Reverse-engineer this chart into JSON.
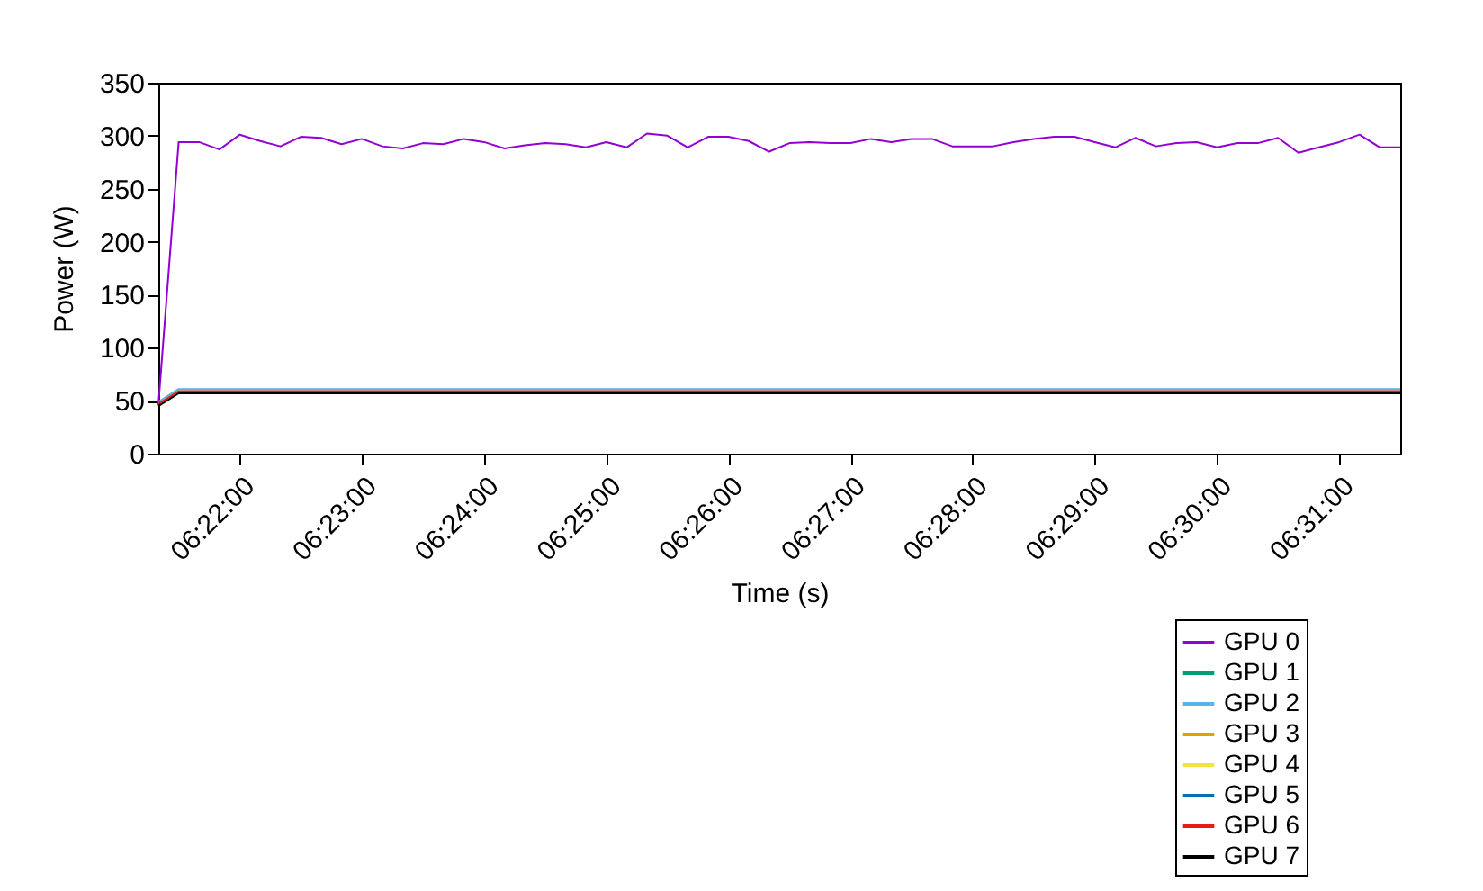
{
  "chart_data": {
    "type": "line",
    "xlabel": "Time (s)",
    "ylabel": "Power (W)",
    "legend": "bottom right",
    "grid": false,
    "xlim": [
      6.35556,
      6.525
    ],
    "ylim": [
      0,
      350
    ],
    "xticks": [
      {
        "value": 6.36667,
        "label": "06:22:00"
      },
      {
        "value": 6.38333,
        "label": "06:23:00"
      },
      {
        "value": 6.4,
        "label": "06:24:00"
      },
      {
        "value": 6.41667,
        "label": "06:25:00"
      },
      {
        "value": 6.43333,
        "label": "06:26:00"
      },
      {
        "value": 6.45,
        "label": "06:27:00"
      },
      {
        "value": 6.46667,
        "label": "06:28:00"
      },
      {
        "value": 6.48333,
        "label": "06:29:00"
      },
      {
        "value": 6.5,
        "label": "06:30:00"
      },
      {
        "value": 6.51667,
        "label": "06:31:00"
      }
    ],
    "yticks": [
      0,
      50,
      100,
      150,
      200,
      250,
      300,
      350
    ],
    "x": [
      6.35556,
      6.35833,
      6.36111,
      6.36389,
      6.36667,
      6.36944,
      6.37222,
      6.375,
      6.37778,
      6.38056,
      6.38333,
      6.38611,
      6.38889,
      6.39167,
      6.39444,
      6.39722,
      6.4,
      6.40278,
      6.40556,
      6.40833,
      6.41111,
      6.41389,
      6.41667,
      6.41944,
      6.42222,
      6.425,
      6.42778,
      6.43056,
      6.43333,
      6.43611,
      6.43889,
      6.44167,
      6.44444,
      6.44722,
      6.45,
      6.45278,
      6.45556,
      6.45833,
      6.46111,
      6.46389,
      6.46667,
      6.46944,
      6.47222,
      6.475,
      6.47778,
      6.48056,
      6.48333,
      6.48611,
      6.48889,
      6.49167,
      6.49444,
      6.49722,
      6.5,
      6.50278,
      6.50556,
      6.50833,
      6.51111,
      6.51389,
      6.51667,
      6.51944,
      6.52222,
      6.525
    ],
    "series": [
      {
        "name": "GPU 0",
        "color": "#9400d3",
        "values": [
          46,
          294,
          294,
          287,
          301,
          295,
          290,
          299,
          298,
          292,
          297,
          290,
          288,
          293,
          292,
          297,
          294,
          288,
          291,
          293,
          292,
          289,
          294,
          289,
          302,
          300,
          289,
          299,
          299,
          295,
          285,
          293,
          294,
          293,
          293,
          297,
          294,
          297,
          297,
          290,
          290,
          290,
          294,
          297,
          299,
          299,
          294,
          289,
          298,
          290,
          293,
          294,
          289,
          293,
          293,
          298,
          284,
          289,
          294,
          301,
          289,
          289
        ]
      },
      {
        "name": "GPU 1",
        "color": "#009e73",
        "values": [
          null,
          null,
          null,
          null,
          null,
          null,
          null,
          null,
          null,
          null,
          null,
          null,
          null,
          null,
          null,
          null,
          null,
          null,
          null,
          null,
          null,
          null,
          null,
          null,
          null,
          null,
          null,
          null,
          null,
          null,
          null,
          null,
          null,
          null,
          null,
          null,
          null,
          null,
          null,
          null,
          null,
          null,
          null,
          null,
          null,
          null,
          null,
          null,
          null,
          null,
          null,
          null,
          null,
          null,
          null,
          null,
          null,
          null,
          null,
          null,
          null,
          null
        ]
      },
      {
        "name": "GPU 2",
        "color": "#56b4e9",
        "values": [
          49,
          61,
          61,
          61,
          61,
          61,
          61,
          61,
          61,
          61,
          61,
          61,
          61,
          61,
          61,
          61,
          61,
          61,
          61,
          61,
          61,
          61,
          61,
          61,
          61,
          61,
          61,
          61,
          61,
          61,
          61,
          61,
          61,
          61,
          61,
          61,
          61,
          61,
          61,
          61,
          61,
          61,
          61,
          61,
          61,
          61,
          61,
          61,
          61,
          61,
          61,
          61,
          61,
          61,
          61,
          61,
          61,
          61,
          61,
          61,
          61,
          61
        ]
      },
      {
        "name": "GPU 3",
        "color": "#e69f00",
        "values": [
          null,
          null,
          null,
          null,
          null,
          null,
          null,
          null,
          null,
          null,
          null,
          null,
          null,
          null,
          null,
          null,
          null,
          null,
          null,
          null,
          null,
          null,
          null,
          null,
          null,
          null,
          null,
          null,
          null,
          null,
          null,
          null,
          null,
          null,
          null,
          null,
          null,
          null,
          null,
          null,
          null,
          null,
          null,
          null,
          null,
          null,
          null,
          null,
          null,
          null,
          null,
          null,
          null,
          null,
          null,
          null,
          null,
          null,
          null,
          null,
          null,
          null
        ]
      },
      {
        "name": "GPU 4",
        "color": "#f0e442",
        "values": [
          null,
          null,
          null,
          null,
          null,
          null,
          null,
          null,
          null,
          null,
          null,
          null,
          null,
          null,
          null,
          null,
          null,
          null,
          null,
          null,
          null,
          null,
          null,
          null,
          null,
          null,
          null,
          null,
          null,
          null,
          null,
          null,
          null,
          null,
          null,
          null,
          null,
          null,
          null,
          null,
          null,
          null,
          null,
          null,
          null,
          null,
          null,
          null,
          null,
          null,
          null,
          null,
          null,
          null,
          null,
          null,
          null,
          null,
          null,
          null,
          null,
          null
        ]
      },
      {
        "name": "GPU 5",
        "color": "#0072b2",
        "values": [
          null,
          null,
          null,
          null,
          null,
          null,
          null,
          null,
          null,
          null,
          null,
          null,
          null,
          null,
          null,
          null,
          null,
          null,
          null,
          null,
          null,
          null,
          null,
          null,
          null,
          null,
          null,
          null,
          null,
          null,
          null,
          null,
          null,
          null,
          null,
          null,
          null,
          null,
          null,
          null,
          null,
          null,
          null,
          null,
          null,
          null,
          null,
          null,
          null,
          null,
          null,
          null,
          null,
          null,
          null,
          null,
          null,
          null,
          null,
          null,
          null,
          null
        ]
      },
      {
        "name": "GPU 6",
        "color": "#e51e10",
        "values": [
          47,
          59,
          59,
          59,
          59,
          59,
          59,
          59,
          59,
          59,
          59,
          59,
          59,
          59,
          59,
          59,
          59,
          59,
          59,
          59,
          59,
          59,
          59,
          59,
          59,
          59,
          59,
          59,
          59,
          59,
          59,
          59,
          59,
          59,
          59,
          59,
          59,
          59,
          59,
          59,
          59,
          59,
          59,
          59,
          59,
          59,
          59,
          59,
          59,
          59,
          59,
          59,
          59,
          59,
          59,
          59,
          59,
          59,
          59,
          59,
          59,
          59
        ]
      },
      {
        "name": "GPU 7",
        "color": "#000000",
        "values": [
          45,
          57,
          57,
          57,
          57,
          57,
          57,
          57,
          57,
          57,
          57,
          57,
          57,
          57,
          57,
          57,
          57,
          57,
          57,
          57,
          57,
          57,
          57,
          57,
          57,
          57,
          57,
          57,
          57,
          57,
          57,
          57,
          57,
          57,
          57,
          57,
          57,
          57,
          57,
          57,
          57,
          57,
          57,
          57,
          57,
          57,
          57,
          57,
          57,
          57,
          57,
          57,
          57,
          57,
          57,
          57,
          57,
          57,
          57,
          57,
          57,
          57
        ]
      }
    ]
  }
}
